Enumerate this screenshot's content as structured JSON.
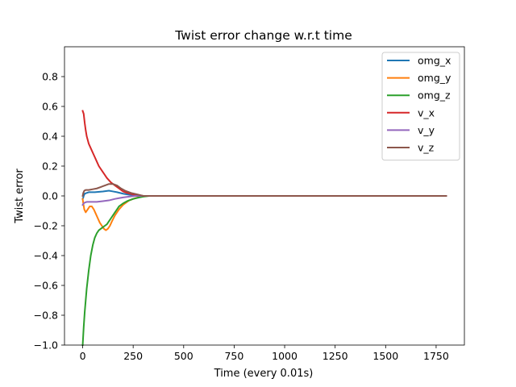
{
  "chart_data": {
    "type": "line",
    "title": "Twist error change w.r.t time",
    "xlabel": "Time (every 0.01s)",
    "ylabel": "Twist error",
    "xlim": [
      -90,
      1890
    ],
    "ylim": [
      -1.0,
      1.0
    ],
    "xticks": [
      0,
      250,
      500,
      750,
      1000,
      1250,
      1500,
      1750
    ],
    "yticks": [
      -1.0,
      -0.8,
      -0.6,
      -0.4,
      -0.2,
      0.0,
      0.2,
      0.4,
      0.6,
      0.8
    ],
    "ytick_labels": [
      "−1.0",
      "−0.8",
      "−0.6",
      "−0.4",
      "−0.2",
      "0.0",
      "0.2",
      "0.4",
      "0.6",
      "0.8"
    ],
    "grid": false,
    "legend_position": "upper right",
    "series": [
      {
        "name": "omg_x",
        "color": "#1f77b4",
        "x": [
          0,
          2,
          5,
          10,
          20,
          30,
          60,
          100,
          130,
          150,
          170,
          200,
          230,
          260,
          300,
          1800
        ],
        "y": [
          -0.02,
          -0.015,
          0.0,
          0.015,
          0.02,
          0.025,
          0.025,
          0.03,
          0.035,
          0.03,
          0.025,
          0.015,
          0.008,
          0.004,
          0.0,
          0.0
        ]
      },
      {
        "name": "omg_y",
        "color": "#ff7f0e",
        "x": [
          0,
          3,
          8,
          15,
          25,
          35,
          45,
          55,
          65,
          75,
          85,
          95,
          105,
          115,
          125,
          135,
          145,
          160,
          180,
          200,
          230,
          260,
          300,
          1800
        ],
        "y": [
          -0.02,
          -0.05,
          -0.09,
          -0.11,
          -0.09,
          -0.07,
          -0.07,
          -0.09,
          -0.12,
          -0.15,
          -0.18,
          -0.2,
          -0.22,
          -0.23,
          -0.22,
          -0.2,
          -0.17,
          -0.13,
          -0.09,
          -0.06,
          -0.03,
          -0.015,
          0.0,
          0.0
        ]
      },
      {
        "name": "omg_z",
        "color": "#2ca02c",
        "x": [
          0,
          5,
          10,
          15,
          20,
          30,
          40,
          50,
          60,
          70,
          80,
          90,
          100,
          110,
          120,
          130,
          140,
          150,
          160,
          170,
          180,
          200,
          220,
          250,
          280,
          300,
          330,
          1800
        ],
        "y": [
          -1.0,
          -0.88,
          -0.78,
          -0.7,
          -0.62,
          -0.5,
          -0.4,
          -0.33,
          -0.28,
          -0.25,
          -0.23,
          -0.22,
          -0.21,
          -0.2,
          -0.19,
          -0.17,
          -0.15,
          -0.13,
          -0.11,
          -0.09,
          -0.07,
          -0.05,
          -0.035,
          -0.02,
          -0.01,
          -0.005,
          0.0,
          0.0
        ]
      },
      {
        "name": "v_x",
        "color": "#d62728",
        "x": [
          0,
          5,
          10,
          15,
          20,
          30,
          40,
          50,
          60,
          70,
          80,
          100,
          120,
          140,
          160,
          180,
          200,
          220,
          250,
          280,
          300,
          1800
        ],
        "y": [
          0.57,
          0.55,
          0.49,
          0.44,
          0.4,
          0.35,
          0.32,
          0.29,
          0.26,
          0.23,
          0.2,
          0.16,
          0.12,
          0.09,
          0.07,
          0.05,
          0.03,
          0.02,
          0.01,
          0.005,
          0.0,
          0.0
        ]
      },
      {
        "name": "v_y",
        "color": "#9467bd",
        "x": [
          0,
          5,
          10,
          20,
          40,
          70,
          100,
          130,
          160,
          180,
          200,
          230,
          260,
          300,
          1800
        ],
        "y": [
          -0.06,
          -0.05,
          -0.045,
          -0.04,
          -0.04,
          -0.04,
          -0.035,
          -0.03,
          -0.02,
          -0.015,
          -0.01,
          -0.005,
          0.0,
          0.0,
          0.0
        ]
      },
      {
        "name": "v_z",
        "color": "#8c564b",
        "x": [
          0,
          3,
          8,
          15,
          30,
          50,
          70,
          90,
          110,
          130,
          150,
          170,
          190,
          210,
          240,
          270,
          300,
          1800
        ],
        "y": [
          0.0,
          0.02,
          0.035,
          0.04,
          0.04,
          0.045,
          0.05,
          0.06,
          0.07,
          0.08,
          0.08,
          0.07,
          0.05,
          0.035,
          0.02,
          0.01,
          0.0,
          0.0
        ]
      }
    ]
  }
}
